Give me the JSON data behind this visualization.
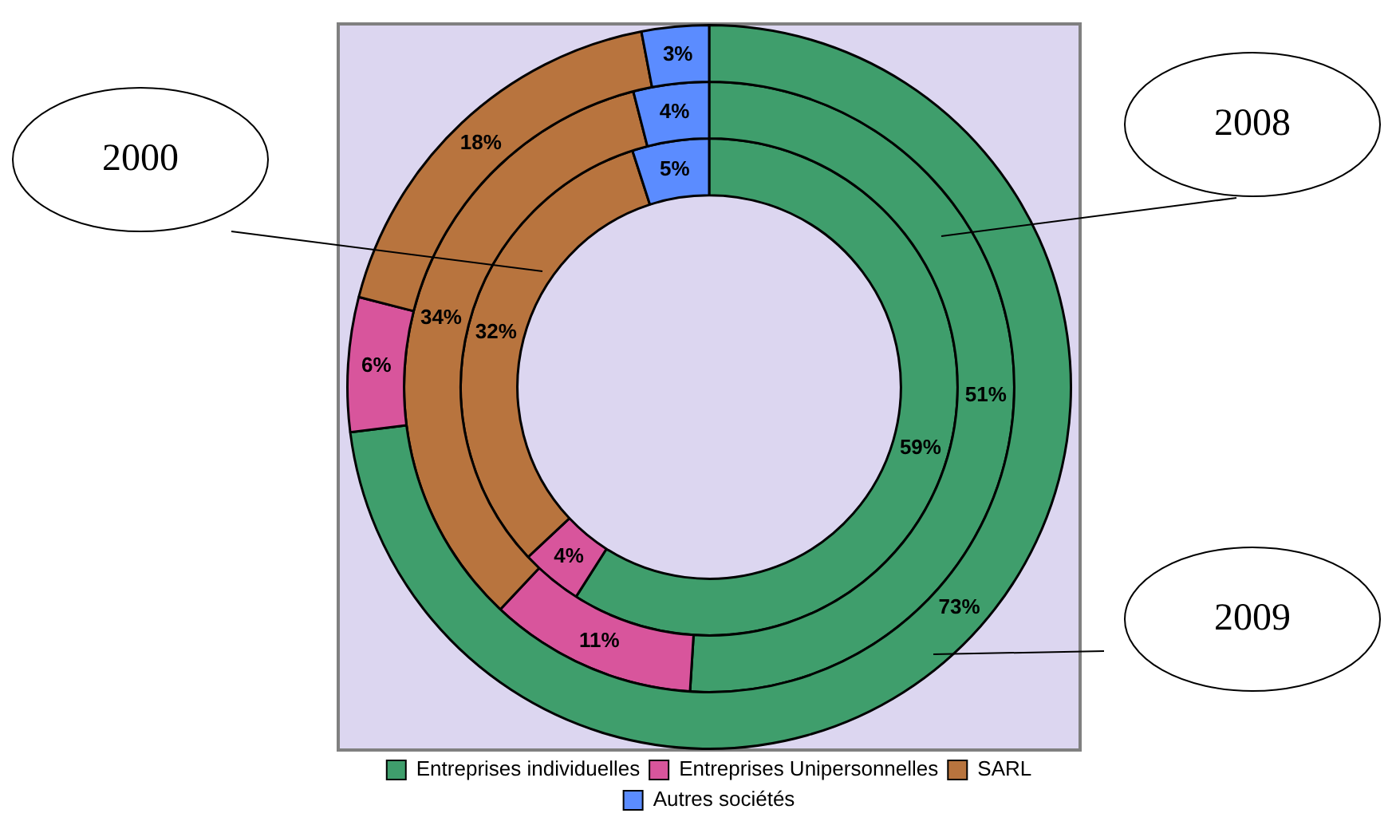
{
  "chart_data": {
    "type": "donut",
    "categories": [
      "Entreprises individuelles",
      "Entreprises Unipersonnelles",
      "SARL",
      "Autres sociétés"
    ],
    "colors": [
      "#3f9e6c",
      "#d8559c",
      "#b8743e",
      "#5b8cff"
    ],
    "series": [
      {
        "values": [
          59,
          4,
          32,
          5
        ],
        "value_labels": [
          "59%",
          "4%",
          "32%",
          "5%"
        ]
      },
      {
        "values": [
          51,
          11,
          34,
          4
        ],
        "value_labels": [
          "51%",
          "11%",
          "34%",
          "4%"
        ]
      },
      {
        "values": [
          73,
          6,
          18,
          3
        ],
        "value_labels": [
          "73%",
          "6%",
          "18%",
          "3%"
        ]
      }
    ],
    "annotations": [
      "2000",
      "2008",
      "2009"
    ],
    "legend": "bottom"
  }
}
